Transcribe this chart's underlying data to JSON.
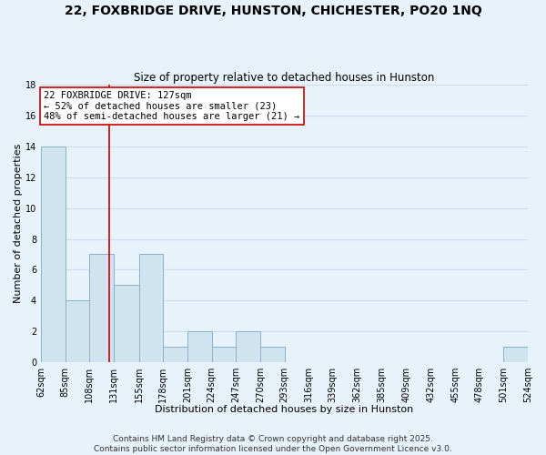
{
  "title": "22, FOXBRIDGE DRIVE, HUNSTON, CHICHESTER, PO20 1NQ",
  "subtitle": "Size of property relative to detached houses in Hunston",
  "xlabel": "Distribution of detached houses by size in Hunston",
  "ylabel": "Number of detached properties",
  "bin_edges": [
    62,
    85,
    108,
    131,
    155,
    178,
    201,
    224,
    247,
    270,
    293,
    316,
    339,
    362,
    385,
    409,
    432,
    455,
    478,
    501,
    524
  ],
  "bar_heights": [
    14,
    4,
    7,
    5,
    7,
    1,
    2,
    1,
    2,
    1,
    0,
    0,
    0,
    0,
    0,
    0,
    0,
    0,
    0,
    1
  ],
  "bar_color": "#d0e4f0",
  "bar_edgecolor": "#8ab0cc",
  "grid_color": "#ccdded",
  "background_color": "#e8f2fa",
  "vline_x": 127,
  "vline_color": "#cc0000",
  "annotation_text": "22 FOXBRIDGE DRIVE: 127sqm\n← 52% of detached houses are smaller (23)\n48% of semi-detached houses are larger (21) →",
  "annotation_box_edgecolor": "#cc0000",
  "annotation_fontsize": 7.5,
  "ylim": [
    0,
    18
  ],
  "yticks": [
    0,
    2,
    4,
    6,
    8,
    10,
    12,
    14,
    16,
    18
  ],
  "footer_line1": "Contains HM Land Registry data © Crown copyright and database right 2025.",
  "footer_line2": "Contains public sector information licensed under the Open Government Licence v3.0.",
  "title_fontsize": 10,
  "subtitle_fontsize": 8.5,
  "axis_label_fontsize": 8,
  "tick_fontsize": 7,
  "footer_fontsize": 6.5
}
